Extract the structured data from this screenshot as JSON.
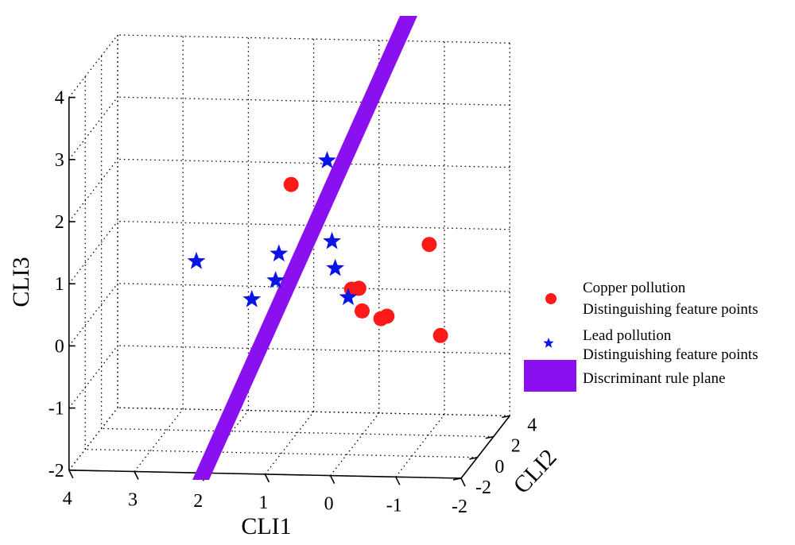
{
  "chart_data": {
    "type": "scatter",
    "projection": "3d",
    "grid": true,
    "legend_placement": "right",
    "xlabel": "CLI1",
    "ylabel": "CLI2",
    "zlabel": "CLI3",
    "xlim": [
      -2,
      4
    ],
    "ylim": [
      -2,
      4
    ],
    "zlim": [
      -2,
      4
    ],
    "x_ticks": [
      "4",
      "3",
      "2",
      "1",
      "0",
      "-1",
      "-2"
    ],
    "y_ticks": [
      "-2",
      "0",
      "2",
      "4"
    ],
    "z_ticks": [
      "4",
      "3",
      "2",
      "1",
      "0",
      "-1",
      "-2"
    ],
    "series": [
      {
        "name": "Copper pollution",
        "name_line2": "Distinguishing feature points",
        "marker": "circle",
        "color": "#ff1a1a",
        "points": [
          {
            "x": 0.8,
            "y": -0.4,
            "z": 2.4
          },
          {
            "x": -1.4,
            "y": -1.1,
            "z": 1.6
          },
          {
            "x": -0.1,
            "y": -0.2,
            "z": 0.7
          },
          {
            "x": -0.2,
            "y": -0.1,
            "z": 0.7
          },
          {
            "x": -0.15,
            "y": 0.7,
            "z": 0.2
          },
          {
            "x": -0.45,
            "y": 0.6,
            "z": 0.1
          },
          {
            "x": -0.55,
            "y": 0.55,
            "z": 0.15
          },
          {
            "x": -1.4,
            "y": 0.3,
            "z": -0.1
          }
        ]
      },
      {
        "name": "Lead pollution",
        "name_line2": "Distinguishing feature points",
        "marker": "star",
        "color": "#0a14e6",
        "points": [
          {
            "x": 0.1,
            "y": -1.6,
            "z": 3.0
          },
          {
            "x": 2.2,
            "y": -0.8,
            "z": 1.2
          },
          {
            "x": 0.9,
            "y": -1.1,
            "z": 1.4
          },
          {
            "x": 1.0,
            "y": -0.7,
            "z": 0.9
          },
          {
            "x": 0.1,
            "y": -1.0,
            "z": 1.6
          },
          {
            "x": 0.1,
            "y": -0.6,
            "z": 1.1
          },
          {
            "x": 1.5,
            "y": 0.4,
            "z": 0.4
          },
          {
            "x": 0.0,
            "y": 0.2,
            "z": 0.5
          }
        ]
      }
    ],
    "plane": {
      "name": "Discriminant rule plane",
      "color": "#8b10f0"
    }
  }
}
